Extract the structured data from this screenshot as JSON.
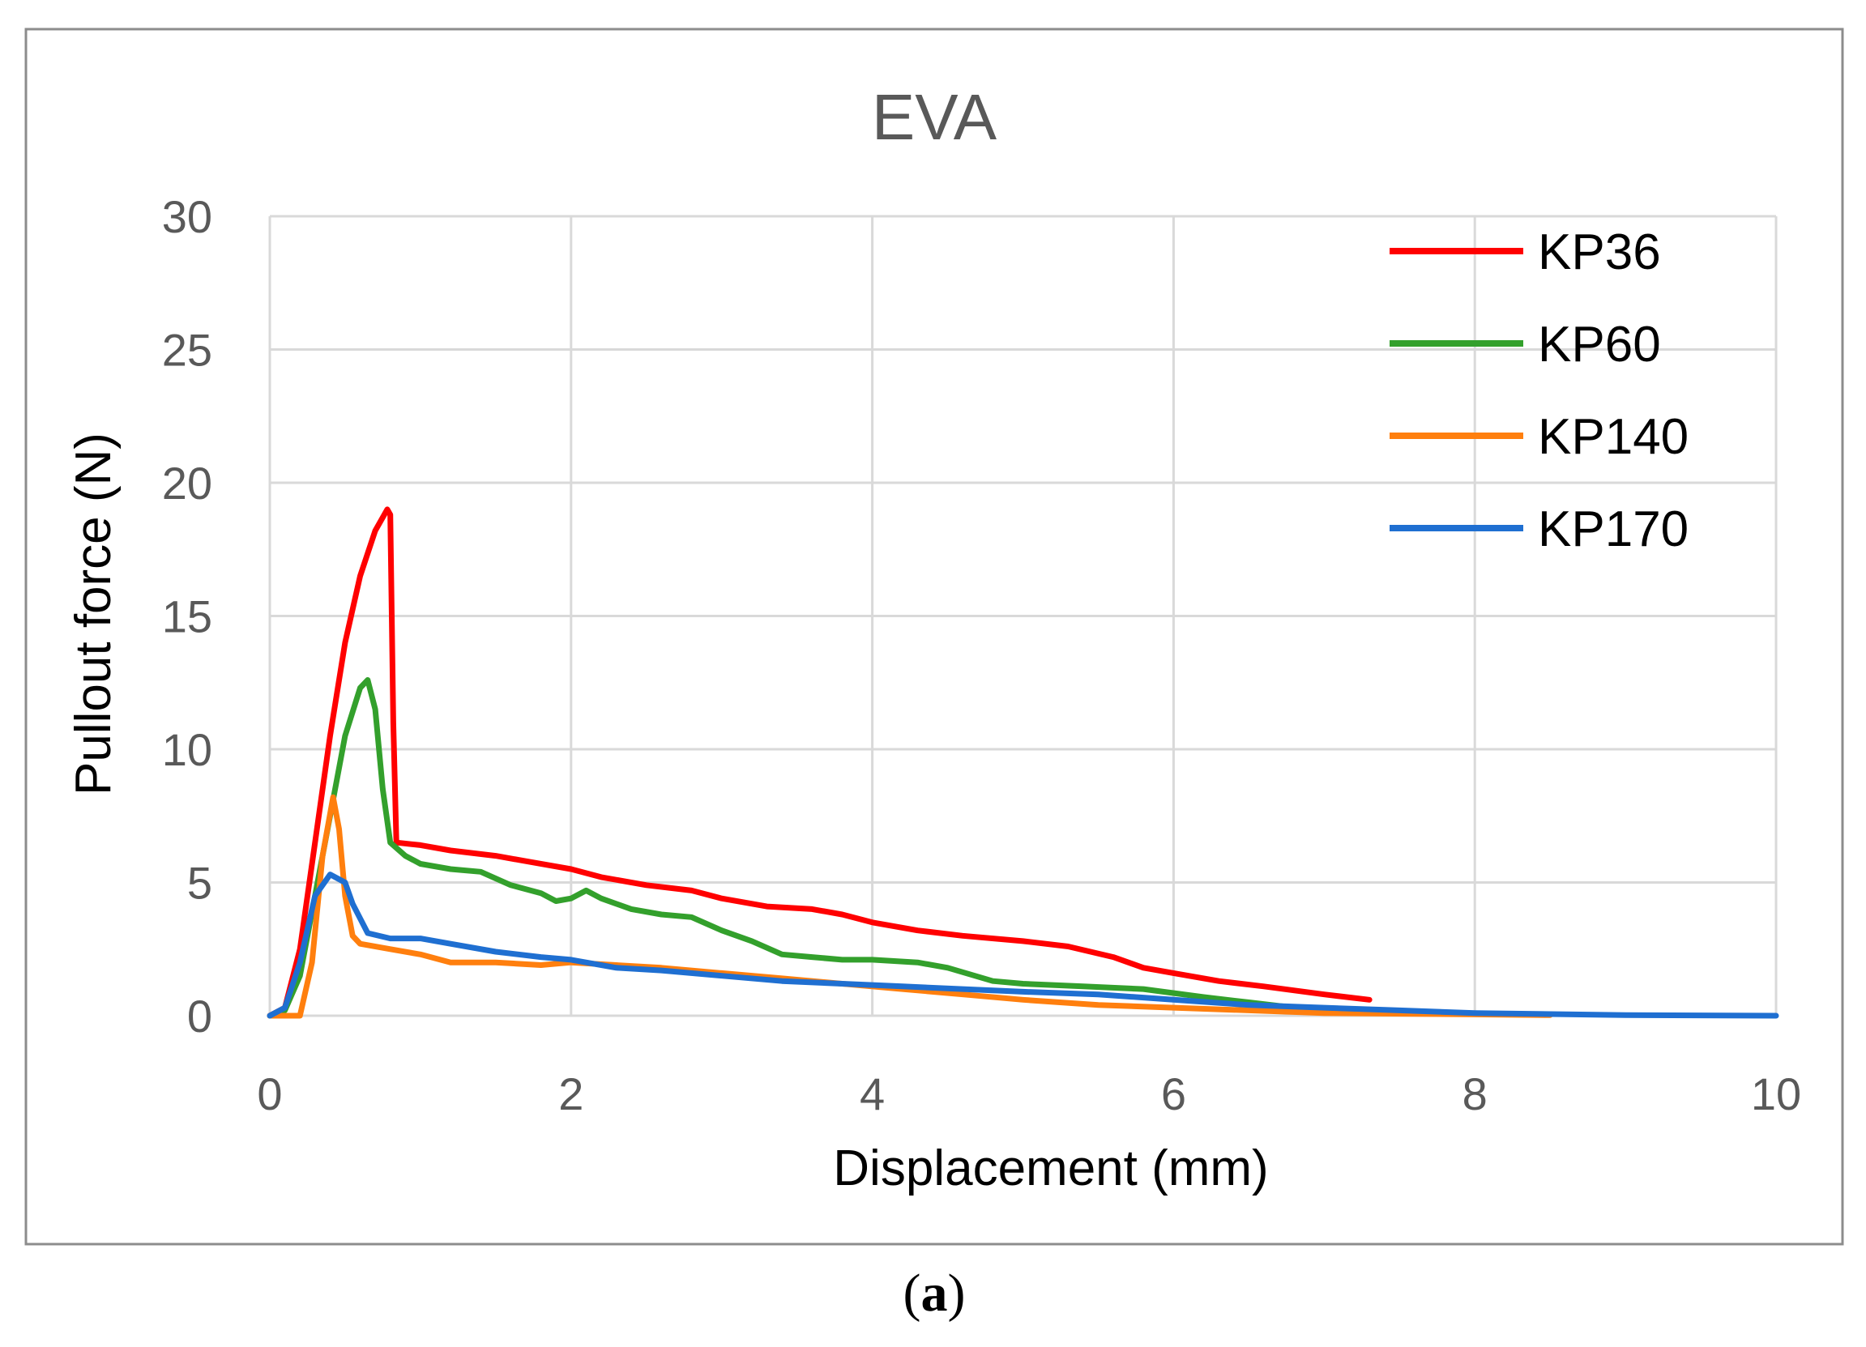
{
  "chart_data": {
    "type": "line",
    "title": "EVA",
    "xlabel": "Displacement (mm)",
    "ylabel": "Pullout force (N)",
    "xlim": [
      0,
      10
    ],
    "ylim": [
      0,
      30
    ],
    "x_ticks": [
      0,
      2,
      4,
      6,
      8,
      10
    ],
    "y_ticks": [
      0,
      5,
      10,
      15,
      20,
      25,
      30
    ],
    "x_tick_labels": [
      "0",
      "2",
      "4",
      "6",
      "8",
      "10"
    ],
    "y_tick_labels": [
      "0",
      "5",
      "10",
      "15",
      "20",
      "25",
      "30"
    ],
    "grid": true,
    "legend_position": "top-right",
    "series": [
      {
        "name": "KP36",
        "color": "#ff0000",
        "points": [
          [
            0,
            0
          ],
          [
            0.1,
            0.3
          ],
          [
            0.2,
            2.5
          ],
          [
            0.3,
            6.5
          ],
          [
            0.4,
            10.5
          ],
          [
            0.5,
            14
          ],
          [
            0.6,
            16.5
          ],
          [
            0.7,
            18.2
          ],
          [
            0.78,
            19
          ],
          [
            0.8,
            18.8
          ],
          [
            0.82,
            11
          ],
          [
            0.84,
            6.5
          ],
          [
            1.0,
            6.4
          ],
          [
            1.2,
            6.2
          ],
          [
            1.5,
            6.0
          ],
          [
            1.7,
            5.8
          ],
          [
            2.0,
            5.5
          ],
          [
            2.2,
            5.2
          ],
          [
            2.5,
            4.9
          ],
          [
            2.8,
            4.7
          ],
          [
            3.0,
            4.4
          ],
          [
            3.3,
            4.1
          ],
          [
            3.6,
            4.0
          ],
          [
            3.8,
            3.8
          ],
          [
            4.0,
            3.5
          ],
          [
            4.3,
            3.2
          ],
          [
            4.6,
            3.0
          ],
          [
            5.0,
            2.8
          ],
          [
            5.3,
            2.6
          ],
          [
            5.6,
            2.2
          ],
          [
            5.8,
            1.8
          ],
          [
            6.0,
            1.6
          ],
          [
            6.3,
            1.3
          ],
          [
            6.6,
            1.1
          ],
          [
            7.0,
            0.8
          ],
          [
            7.3,
            0.6
          ]
        ]
      },
      {
        "name": "KP60",
        "color": "#33a02c",
        "points": [
          [
            0,
            0
          ],
          [
            0.1,
            0.2
          ],
          [
            0.2,
            1.5
          ],
          [
            0.3,
            4.5
          ],
          [
            0.4,
            7.5
          ],
          [
            0.5,
            10.5
          ],
          [
            0.6,
            12.3
          ],
          [
            0.65,
            12.6
          ],
          [
            0.7,
            11.5
          ],
          [
            0.75,
            8.5
          ],
          [
            0.8,
            6.5
          ],
          [
            0.9,
            6.0
          ],
          [
            1.0,
            5.7
          ],
          [
            1.2,
            5.5
          ],
          [
            1.4,
            5.4
          ],
          [
            1.6,
            4.9
          ],
          [
            1.8,
            4.6
          ],
          [
            1.9,
            4.3
          ],
          [
            2.0,
            4.4
          ],
          [
            2.1,
            4.7
          ],
          [
            2.2,
            4.4
          ],
          [
            2.4,
            4.0
          ],
          [
            2.6,
            3.8
          ],
          [
            2.8,
            3.7
          ],
          [
            3.0,
            3.2
          ],
          [
            3.2,
            2.8
          ],
          [
            3.4,
            2.3
          ],
          [
            3.6,
            2.2
          ],
          [
            3.8,
            2.1
          ],
          [
            4.0,
            2.1
          ],
          [
            4.3,
            2.0
          ],
          [
            4.5,
            1.8
          ],
          [
            4.8,
            1.3
          ],
          [
            5.0,
            1.2
          ],
          [
            5.4,
            1.1
          ],
          [
            5.8,
            1.0
          ],
          [
            6.2,
            0.7
          ],
          [
            6.5,
            0.5
          ],
          [
            6.8,
            0.3
          ],
          [
            7.0,
            0.15
          ]
        ]
      },
      {
        "name": "KP140",
        "color": "#ff7f0e",
        "points": [
          [
            0,
            0
          ],
          [
            0.2,
            0
          ],
          [
            0.28,
            2.0
          ],
          [
            0.35,
            6.0
          ],
          [
            0.42,
            8.2
          ],
          [
            0.46,
            7.0
          ],
          [
            0.5,
            4.5
          ],
          [
            0.55,
            3.0
          ],
          [
            0.6,
            2.7
          ],
          [
            0.8,
            2.5
          ],
          [
            1.0,
            2.3
          ],
          [
            1.2,
            2.0
          ],
          [
            1.5,
            2.0
          ],
          [
            1.8,
            1.9
          ],
          [
            2.0,
            2.0
          ],
          [
            2.3,
            1.9
          ],
          [
            2.6,
            1.8
          ],
          [
            3.0,
            1.6
          ],
          [
            3.4,
            1.4
          ],
          [
            3.8,
            1.2
          ],
          [
            4.2,
            1.0
          ],
          [
            4.6,
            0.8
          ],
          [
            5.0,
            0.6
          ],
          [
            5.5,
            0.4
          ],
          [
            6.0,
            0.3
          ],
          [
            6.5,
            0.2
          ],
          [
            7.0,
            0.1
          ],
          [
            8.0,
            0.05
          ],
          [
            8.5,
            0.02
          ]
        ]
      },
      {
        "name": "KP170",
        "color": "#1f6fd1",
        "points": [
          [
            0,
            0
          ],
          [
            0.1,
            0.3
          ],
          [
            0.2,
            2.0
          ],
          [
            0.3,
            4.5
          ],
          [
            0.4,
            5.3
          ],
          [
            0.5,
            5.0
          ],
          [
            0.55,
            4.2
          ],
          [
            0.65,
            3.1
          ],
          [
            0.8,
            2.9
          ],
          [
            1.0,
            2.9
          ],
          [
            1.2,
            2.7
          ],
          [
            1.5,
            2.4
          ],
          [
            1.8,
            2.2
          ],
          [
            2.0,
            2.1
          ],
          [
            2.3,
            1.8
          ],
          [
            2.6,
            1.7
          ],
          [
            3.0,
            1.5
          ],
          [
            3.4,
            1.3
          ],
          [
            3.8,
            1.2
          ],
          [
            4.2,
            1.1
          ],
          [
            4.6,
            1.0
          ],
          [
            5.0,
            0.9
          ],
          [
            5.5,
            0.8
          ],
          [
            6.0,
            0.6
          ],
          [
            6.5,
            0.4
          ],
          [
            7.0,
            0.3
          ],
          [
            7.5,
            0.2
          ],
          [
            8.0,
            0.1
          ],
          [
            9.0,
            0.02
          ],
          [
            10.0,
            0.0
          ]
        ]
      }
    ]
  },
  "caption": {
    "open": "(",
    "letter": "a",
    "close": ")"
  }
}
